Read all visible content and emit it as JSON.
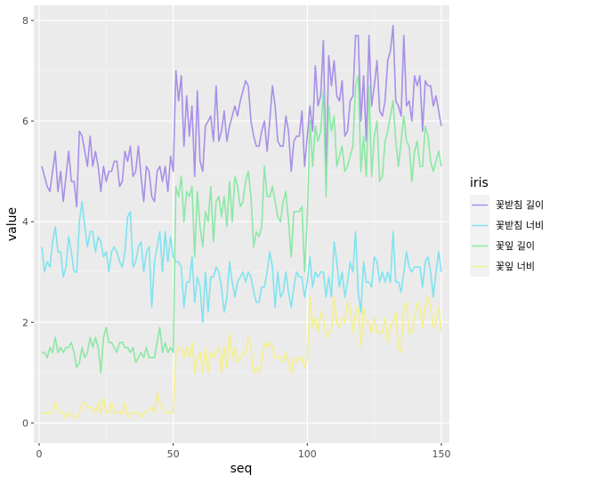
{
  "chart_data": {
    "type": "line",
    "xlabel": "seq",
    "ylabel": "value",
    "xlim": [
      -2,
      153
    ],
    "ylim": [
      -0.4,
      8.3
    ],
    "x_ticks": [
      0,
      50,
      100,
      150
    ],
    "y_ticks": [
      0,
      2,
      4,
      6,
      8
    ],
    "grid": true,
    "legend": {
      "title": "iris",
      "position": "right"
    },
    "x": [
      1,
      2,
      3,
      4,
      5,
      6,
      7,
      8,
      9,
      10,
      11,
      12,
      13,
      14,
      15,
      16,
      17,
      18,
      19,
      20,
      21,
      22,
      23,
      24,
      25,
      26,
      27,
      28,
      29,
      30,
      31,
      32,
      33,
      34,
      35,
      36,
      37,
      38,
      39,
      40,
      41,
      42,
      43,
      44,
      45,
      46,
      47,
      48,
      49,
      50,
      51,
      52,
      53,
      54,
      55,
      56,
      57,
      58,
      59,
      60,
      61,
      62,
      63,
      64,
      65,
      66,
      67,
      68,
      69,
      70,
      71,
      72,
      73,
      74,
      75,
      76,
      77,
      78,
      79,
      80,
      81,
      82,
      83,
      84,
      85,
      86,
      87,
      88,
      89,
      90,
      91,
      92,
      93,
      94,
      95,
      96,
      97,
      98,
      99,
      100,
      101,
      102,
      103,
      104,
      105,
      106,
      107,
      108,
      109,
      110,
      111,
      112,
      113,
      114,
      115,
      116,
      117,
      118,
      119,
      120,
      121,
      122,
      123,
      124,
      125,
      126,
      127,
      128,
      129,
      130,
      131,
      132,
      133,
      134,
      135,
      136,
      137,
      138,
      139,
      140,
      141,
      142,
      143,
      144,
      145,
      146,
      147,
      148,
      149,
      150
    ],
    "series": [
      {
        "name": "꽃받침 길이",
        "color": "#a78fe8",
        "values": [
          5.1,
          4.9,
          4.7,
          4.6,
          5.0,
          5.4,
          4.6,
          5.0,
          4.4,
          4.9,
          5.4,
          4.8,
          4.8,
          4.3,
          5.8,
          5.7,
          5.4,
          5.1,
          5.7,
          5.1,
          5.4,
          5.1,
          4.6,
          5.1,
          4.8,
          5.0,
          5.0,
          5.2,
          5.2,
          4.7,
          4.8,
          5.4,
          5.2,
          5.5,
          4.9,
          5.0,
          5.5,
          4.9,
          4.4,
          5.1,
          5.0,
          4.5,
          4.4,
          5.0,
          5.1,
          4.8,
          5.1,
          4.6,
          5.3,
          5.0,
          7.0,
          6.4,
          6.9,
          5.5,
          6.5,
          5.7,
          6.3,
          4.9,
          6.6,
          5.2,
          5.0,
          5.9,
          6.0,
          6.1,
          5.6,
          6.7,
          5.6,
          5.8,
          6.2,
          5.6,
          5.9,
          6.1,
          6.3,
          6.1,
          6.4,
          6.6,
          6.8,
          6.7,
          6.0,
          5.7,
          5.5,
          5.5,
          5.8,
          6.0,
          5.4,
          6.0,
          6.7,
          6.3,
          5.6,
          5.5,
          5.5,
          6.1,
          5.8,
          5.0,
          5.6,
          5.7,
          5.7,
          6.2,
          5.1,
          5.7,
          6.3,
          5.8,
          7.1,
          6.3,
          6.5,
          7.6,
          4.9,
          7.3,
          6.7,
          7.2,
          6.5,
          6.4,
          6.8,
          5.7,
          5.8,
          6.4,
          6.5,
          7.7,
          7.7,
          6.0,
          6.9,
          5.6,
          7.7,
          6.3,
          6.7,
          7.2,
          6.2,
          6.1,
          6.4,
          7.2,
          7.4,
          7.9,
          6.4,
          6.3,
          6.1,
          7.7,
          6.3,
          6.4,
          6.0,
          6.9,
          6.7,
          6.9,
          5.8,
          6.8,
          6.7,
          6.7,
          6.3,
          6.5,
          6.2,
          5.9
        ]
      },
      {
        "name": "꽃받침 너비",
        "color": "#7fe3f0",
        "values": [
          3.5,
          3.0,
          3.2,
          3.1,
          3.6,
          3.9,
          3.4,
          3.4,
          2.9,
          3.1,
          3.7,
          3.4,
          3.0,
          3.0,
          4.0,
          4.4,
          3.9,
          3.5,
          3.8,
          3.8,
          3.4,
          3.7,
          3.6,
          3.3,
          3.4,
          3.0,
          3.4,
          3.5,
          3.4,
          3.2,
          3.1,
          3.4,
          4.1,
          4.2,
          3.1,
          3.2,
          3.5,
          3.6,
          3.0,
          3.4,
          3.5,
          2.3,
          3.2,
          3.5,
          3.8,
          3.0,
          3.8,
          3.2,
          3.7,
          3.3,
          3.2,
          3.2,
          3.1,
          2.3,
          2.8,
          2.8,
          3.3,
          2.4,
          2.9,
          2.7,
          2.0,
          3.0,
          2.2,
          2.9,
          2.9,
          3.1,
          3.0,
          2.7,
          2.2,
          2.5,
          3.2,
          2.8,
          2.5,
          2.8,
          2.9,
          3.0,
          2.8,
          3.0,
          2.9,
          2.6,
          2.4,
          2.4,
          2.7,
          2.7,
          3.0,
          3.4,
          3.1,
          2.3,
          3.0,
          2.5,
          2.6,
          3.0,
          2.6,
          2.3,
          2.7,
          3.0,
          2.9,
          2.9,
          2.5,
          2.8,
          3.3,
          2.7,
          3.0,
          2.9,
          3.0,
          3.0,
          2.5,
          2.9,
          2.5,
          3.6,
          3.2,
          2.7,
          3.0,
          2.5,
          2.8,
          3.2,
          3.0,
          3.8,
          2.6,
          2.2,
          3.2,
          2.8,
          2.8,
          2.7,
          3.3,
          3.2,
          2.8,
          3.0,
          2.8,
          3.0,
          2.8,
          3.8,
          2.8,
          2.8,
          2.6,
          3.0,
          3.4,
          3.1,
          3.0,
          3.1,
          3.1,
          3.1,
          2.7,
          3.2,
          3.3,
          3.0,
          2.5,
          3.0,
          3.4,
          3.0
        ]
      },
      {
        "name": "꽃잎 길이",
        "color": "#8be8a4",
        "values": [
          1.4,
          1.4,
          1.3,
          1.5,
          1.4,
          1.7,
          1.4,
          1.5,
          1.4,
          1.5,
          1.5,
          1.6,
          1.4,
          1.1,
          1.2,
          1.5,
          1.3,
          1.4,
          1.7,
          1.5,
          1.7,
          1.5,
          1.0,
          1.7,
          1.9,
          1.6,
          1.6,
          1.5,
          1.4,
          1.6,
          1.6,
          1.5,
          1.5,
          1.4,
          1.5,
          1.2,
          1.3,
          1.4,
          1.3,
          1.5,
          1.3,
          1.3,
          1.3,
          1.6,
          1.9,
          1.4,
          1.6,
          1.4,
          1.5,
          1.4,
          4.7,
          4.5,
          4.9,
          4.0,
          4.6,
          4.5,
          4.7,
          3.3,
          4.6,
          3.9,
          3.5,
          4.2,
          4.0,
          4.7,
          3.6,
          4.4,
          4.5,
          4.1,
          4.5,
          3.9,
          4.8,
          4.0,
          4.9,
          4.7,
          4.3,
          4.4,
          4.8,
          5.0,
          4.5,
          3.5,
          3.8,
          3.7,
          3.9,
          5.1,
          4.5,
          4.5,
          4.7,
          4.4,
          4.1,
          4.0,
          4.4,
          4.6,
          4.0,
          3.3,
          4.2,
          4.2,
          4.2,
          4.3,
          3.0,
          4.1,
          6.0,
          5.1,
          5.9,
          5.6,
          5.8,
          6.6,
          4.5,
          6.3,
          5.8,
          6.1,
          5.1,
          5.3,
          5.5,
          5.0,
          5.1,
          5.3,
          5.5,
          6.7,
          6.9,
          5.0,
          5.7,
          4.9,
          6.7,
          4.9,
          5.7,
          6.0,
          4.8,
          4.9,
          5.6,
          5.8,
          6.1,
          6.4,
          5.6,
          5.1,
          5.6,
          6.1,
          5.6,
          5.5,
          4.8,
          5.4,
          5.6,
          5.1,
          5.1,
          5.9,
          5.7,
          5.2,
          5.0,
          5.2,
          5.4,
          5.1
        ]
      },
      {
        "name": "꽃잎 너비",
        "color": "#f5f08a",
        "values": [
          0.2,
          0.2,
          0.2,
          0.2,
          0.2,
          0.4,
          0.3,
          0.2,
          0.2,
          0.1,
          0.2,
          0.2,
          0.1,
          0.1,
          0.2,
          0.4,
          0.4,
          0.3,
          0.3,
          0.3,
          0.2,
          0.4,
          0.2,
          0.5,
          0.2,
          0.2,
          0.4,
          0.2,
          0.2,
          0.2,
          0.2,
          0.4,
          0.1,
          0.2,
          0.2,
          0.2,
          0.2,
          0.1,
          0.2,
          0.2,
          0.3,
          0.3,
          0.2,
          0.6,
          0.4,
          0.3,
          0.2,
          0.2,
          0.2,
          0.2,
          1.4,
          1.5,
          1.5,
          1.3,
          1.5,
          1.3,
          1.6,
          1.0,
          1.3,
          1.4,
          1.0,
          1.5,
          1.0,
          1.4,
          1.3,
          1.4,
          1.5,
          1.0,
          1.5,
          1.1,
          1.8,
          1.3,
          1.5,
          1.2,
          1.3,
          1.4,
          1.4,
          1.7,
          1.5,
          1.0,
          1.1,
          1.0,
          1.2,
          1.6,
          1.5,
          1.6,
          1.5,
          1.3,
          1.3,
          1.3,
          1.2,
          1.4,
          1.2,
          1.0,
          1.3,
          1.2,
          1.3,
          1.3,
          1.1,
          1.3,
          2.5,
          1.9,
          2.1,
          1.8,
          2.2,
          2.1,
          1.7,
          1.8,
          1.8,
          2.5,
          2.0,
          1.9,
          2.1,
          2.0,
          2.4,
          2.3,
          1.8,
          2.2,
          2.3,
          1.5,
          2.3,
          2.0,
          2.0,
          1.8,
          2.1,
          1.8,
          1.8,
          1.8,
          2.1,
          1.6,
          1.9,
          2.0,
          2.2,
          1.5,
          1.4,
          2.3,
          2.4,
          1.8,
          1.8,
          2.1,
          2.4,
          2.3,
          1.9,
          2.3,
          2.5,
          2.3,
          1.9,
          2.0,
          2.3,
          1.8
        ]
      }
    ]
  }
}
